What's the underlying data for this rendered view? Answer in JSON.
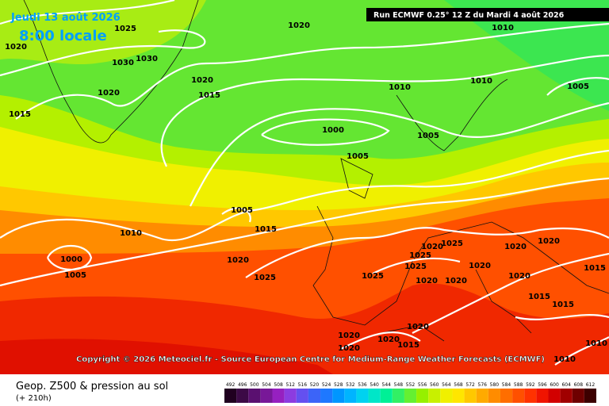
{
  "header": {
    "date": "Jeudi 13 août 2026",
    "time": "8:00 locale",
    "run": "Run ECMWF 0.25° 12 Z du Mardi 4 août 2026"
  },
  "copyright": "Copyright © 2026 Meteociel.fr - Source European Centre for Medium-Range Weather Forecasts (ECMWF)",
  "footer": {
    "title": "Geop. Z500 & pression au sol",
    "lead": "(+ 210h)"
  },
  "isobar_labels": [
    "1025",
    "1020",
    "1010",
    "1020",
    "1030",
    "1030",
    "1020",
    "1020",
    "1015",
    "1010",
    "1010",
    "1005",
    "1015",
    "1000",
    "1005",
    "1005",
    "1005",
    "1010",
    "1015",
    "1000",
    "1005",
    "1020",
    "1025",
    "1025",
    "1020",
    "1025",
    "1025",
    "1025",
    "1020",
    "1020",
    "1020",
    "1020",
    "1020",
    "1020",
    "1015",
    "1015",
    "1015",
    "1020",
    "1020",
    "1020",
    "1015",
    "1020",
    "1010",
    "1010"
  ],
  "scale": {
    "values": [
      492,
      496,
      500,
      504,
      508,
      512,
      516,
      520,
      524,
      528,
      532,
      536,
      540,
      544,
      548,
      552,
      556,
      560,
      564,
      568,
      572,
      576,
      580,
      584,
      588,
      592,
      596,
      600,
      604,
      608,
      612
    ],
    "colors": [
      "#200020",
      "#3c0a46",
      "#5a1070",
      "#781898",
      "#9620c0",
      "#8c3ce0",
      "#6450f0",
      "#3c64f8",
      "#1e78ff",
      "#0096ff",
      "#00b4ff",
      "#00d2f0",
      "#00e6c8",
      "#00f096",
      "#32f064",
      "#64f032",
      "#96f000",
      "#c8f000",
      "#f0f000",
      "#ffe600",
      "#ffc800",
      "#ffaa00",
      "#ff8c00",
      "#ff6e00",
      "#ff5000",
      "#ff3200",
      "#f01400",
      "#d20000",
      "#a00000",
      "#6e0000",
      "#3c0000"
    ]
  }
}
